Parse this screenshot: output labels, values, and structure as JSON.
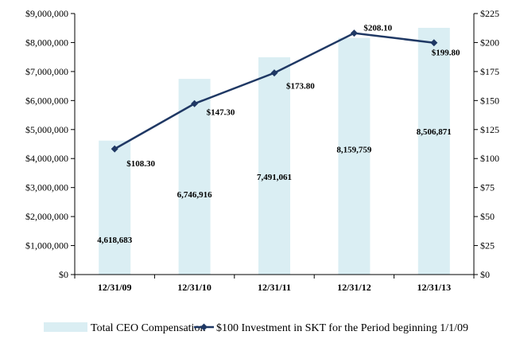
{
  "chart_data": {
    "type": "bar",
    "categories": [
      "12/31/09",
      "12/31/10",
      "12/31/11",
      "12/31/12",
      "12/31/13"
    ],
    "series": [
      {
        "name": "Total CEO Compensation",
        "type": "bar",
        "axis": "left",
        "values": [
          4618683,
          6746916,
          7491061,
          8159759,
          8506871
        ],
        "labels": [
          "4,618,683",
          "6,746,916",
          "7,491,061",
          "8,159,759",
          "8,506,871"
        ],
        "color": "#DAEEF3"
      },
      {
        "name": "$100 Investment in SKT for the Period beginning 1/1/09",
        "type": "line",
        "axis": "right",
        "values": [
          108.3,
          147.3,
          173.8,
          208.1,
          199.8
        ],
        "labels": [
          "$108.30",
          "$147.30",
          "$173.80",
          "$208.10",
          "$199.80"
        ],
        "color": "#1F3864"
      }
    ],
    "y_left": {
      "ylim": [
        0,
        9000000
      ],
      "ticks": [
        0,
        1000000,
        2000000,
        3000000,
        4000000,
        5000000,
        6000000,
        7000000,
        8000000,
        9000000
      ],
      "tick_labels": [
        "$0",
        "$1,000,000",
        "$2,000,000",
        "$3,000,000",
        "$4,000,000",
        "$5,000,000",
        "$6,000,000",
        "$7,000,000",
        "$8,000,000",
        "$9,000,000"
      ]
    },
    "y_right": {
      "ylim": [
        0,
        225
      ],
      "ticks": [
        0,
        25,
        50,
        75,
        100,
        125,
        150,
        175,
        200,
        225
      ],
      "tick_labels": [
        "$0",
        "$25",
        "$50",
        "$75",
        "$100",
        "$125",
        "$150",
        "$175",
        "$200",
        "$225"
      ]
    },
    "legend_position": "bottom",
    "grid": false
  }
}
